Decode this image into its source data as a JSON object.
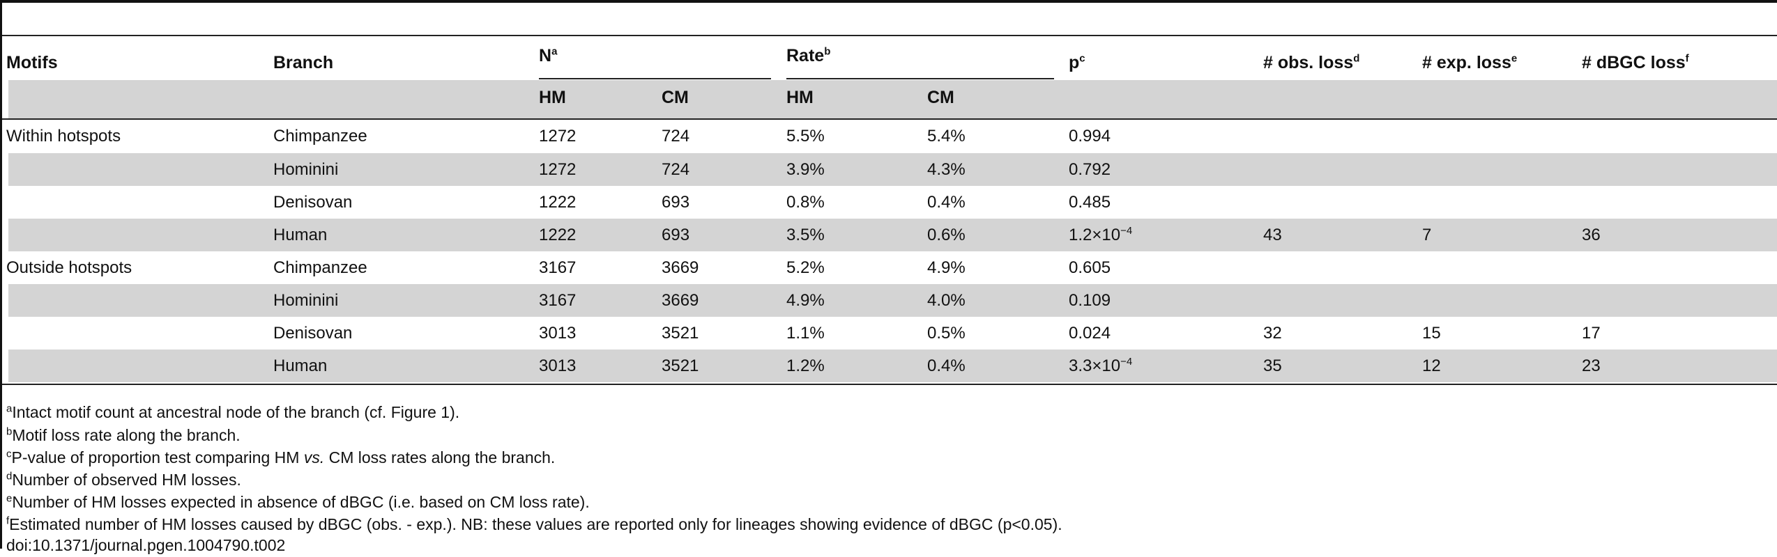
{
  "table": {
    "headers": {
      "motifs": "Motifs",
      "branch": "Branch",
      "n": "N",
      "n_sup": "a",
      "rate": "Rate",
      "rate_sup": "b",
      "p": "p",
      "p_sup": "c",
      "obs_loss": "# obs. loss",
      "obs_loss_sup": "d",
      "exp_loss": "# exp. loss",
      "exp_loss_sup": "e",
      "dbgc_loss": "# dBGC loss",
      "dbgc_loss_sup": "f",
      "sub_n_hm": "HM",
      "sub_n_cm": "CM",
      "sub_rate_hm": "HM",
      "sub_rate_cm": "CM"
    },
    "rows": [
      {
        "motif": "Within hotspots",
        "branch": "Chimpanzee",
        "n_hm": "1272",
        "n_cm": "724",
        "rate_hm": "5.5%",
        "rate_cm": "5.4%",
        "p": "0.994",
        "obs": "",
        "exp": "",
        "dbgc": ""
      },
      {
        "motif": "",
        "branch": "Hominini",
        "n_hm": "1272",
        "n_cm": "724",
        "rate_hm": "3.9%",
        "rate_cm": "4.3%",
        "p": "0.792",
        "obs": "",
        "exp": "",
        "dbgc": ""
      },
      {
        "motif": "",
        "branch": "Denisovan",
        "n_hm": "1222",
        "n_cm": "693",
        "rate_hm": "0.8%",
        "rate_cm": "0.4%",
        "p": "0.485",
        "obs": "",
        "exp": "",
        "dbgc": ""
      },
      {
        "motif": "",
        "branch": "Human",
        "n_hm": "1222",
        "n_cm": "693",
        "rate_hm": "3.5%",
        "rate_cm": "0.6%",
        "p": "1.2×10",
        "p_exp": "−4",
        "obs": "43",
        "exp": "7",
        "dbgc": "36"
      },
      {
        "motif": "Outside hotspots",
        "branch": "Chimpanzee",
        "n_hm": "3167",
        "n_cm": "3669",
        "rate_hm": "5.2%",
        "rate_cm": "4.9%",
        "p": "0.605",
        "obs": "",
        "exp": "",
        "dbgc": ""
      },
      {
        "motif": "",
        "branch": "Hominini",
        "n_hm": "3167",
        "n_cm": "3669",
        "rate_hm": "4.9%",
        "rate_cm": "4.0%",
        "p": "0.109",
        "obs": "",
        "exp": "",
        "dbgc": ""
      },
      {
        "motif": "",
        "branch": "Denisovan",
        "n_hm": "3013",
        "n_cm": "3521",
        "rate_hm": "1.1%",
        "rate_cm": "0.5%",
        "p": "0.024",
        "obs": "32",
        "exp": "15",
        "dbgc": "17"
      },
      {
        "motif": "",
        "branch": "Human",
        "n_hm": "3013",
        "n_cm": "3521",
        "rate_hm": "1.2%",
        "rate_cm": "0.4%",
        "p": "3.3×10",
        "p_exp": "−4",
        "obs": "35",
        "exp": "12",
        "dbgc": "23"
      }
    ]
  },
  "footnotes": {
    "a": {
      "sup": "a",
      "text": "Intact motif count at ancestral node of the branch (cf. Figure 1)."
    },
    "b": {
      "sup": "b",
      "text": "Motif loss rate along the branch."
    },
    "c": {
      "sup": "c",
      "pre": "P-value of proportion test comparing HM ",
      "ital": "vs.",
      "post": " CM loss rates along the branch."
    },
    "d": {
      "sup": "d",
      "text": "Number of observed HM losses."
    },
    "e": {
      "sup": "e",
      "text": "Number of HM losses expected in absence of dBGC (i.e. based on CM loss rate)."
    },
    "f": {
      "sup": "f",
      "text": "Estimated number of HM losses caused by dBGC (obs. - exp.). NB: these values are reported only for lineages showing evidence of dBGC (p<0.05)."
    }
  },
  "doi": "doi:10.1371/journal.pgen.1004790.t002",
  "colors": {
    "band": "#d4d4d4",
    "rule": "#222222",
    "text": "#111111"
  }
}
